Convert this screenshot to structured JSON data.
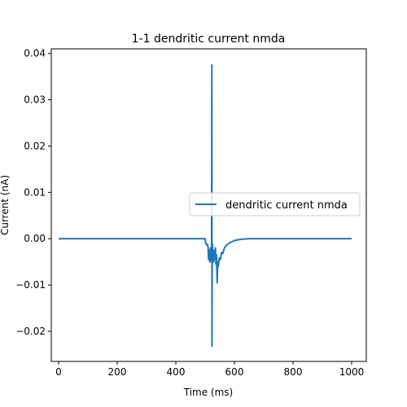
{
  "chart_data": {
    "type": "line",
    "title": "1-1 dendritic current nmda",
    "xlabel": "Time (ms)",
    "ylabel": "Current (nA)",
    "xlim": [
      -25,
      1050
    ],
    "ylim": [
      -0.0265,
      0.041
    ],
    "xticks": [
      0,
      200,
      400,
      600,
      800,
      1000
    ],
    "xtick_labels": [
      "0",
      "200",
      "400",
      "600",
      "800",
      "1000"
    ],
    "yticks": [
      -0.02,
      -0.01,
      0.0,
      0.01,
      0.02,
      0.03,
      0.04
    ],
    "ytick_labels": [
      "−0.02",
      "−0.01",
      "0.00",
      "0.01",
      "0.02",
      "0.03",
      "0.04"
    ],
    "grid": false,
    "legend": {
      "placement": "right",
      "entries": [
        "dendritic current nmda"
      ]
    },
    "series": [
      {
        "name": "dendritic current nmda",
        "color": "#1f77b4",
        "x": [
          0,
          100,
          200,
          300,
          400,
          500,
          502,
          505,
          508,
          510,
          512,
          514,
          516,
          518,
          520,
          521,
          522,
          523,
          523.5,
          524,
          525,
          527,
          529,
          531,
          533,
          535,
          537,
          539,
          541,
          543,
          545,
          548,
          552,
          556,
          560,
          566,
          572,
          580,
          590,
          600,
          615,
          630,
          650,
          670,
          700,
          750,
          800,
          900,
          1000
        ],
        "y": [
          0,
          0,
          0,
          0,
          0,
          0,
          -0.001,
          -0.0013,
          -0.0012,
          -0.0018,
          -0.0045,
          -0.0025,
          -0.005,
          -0.002,
          -0.0045,
          -0.003,
          -0.005,
          0.0375,
          -0.0232,
          -0.004,
          -0.0012,
          -0.0035,
          -0.005,
          -0.0025,
          -0.0045,
          -0.002,
          -0.0055,
          -0.0035,
          -0.0095,
          -0.005,
          -0.006,
          -0.0042,
          -0.0045,
          -0.003,
          -0.0032,
          -0.002,
          -0.0015,
          -0.001,
          -0.0007,
          -0.0004,
          -0.0002,
          -0.0001,
          0,
          0,
          0,
          0,
          0,
          0,
          0
        ]
      }
    ]
  }
}
